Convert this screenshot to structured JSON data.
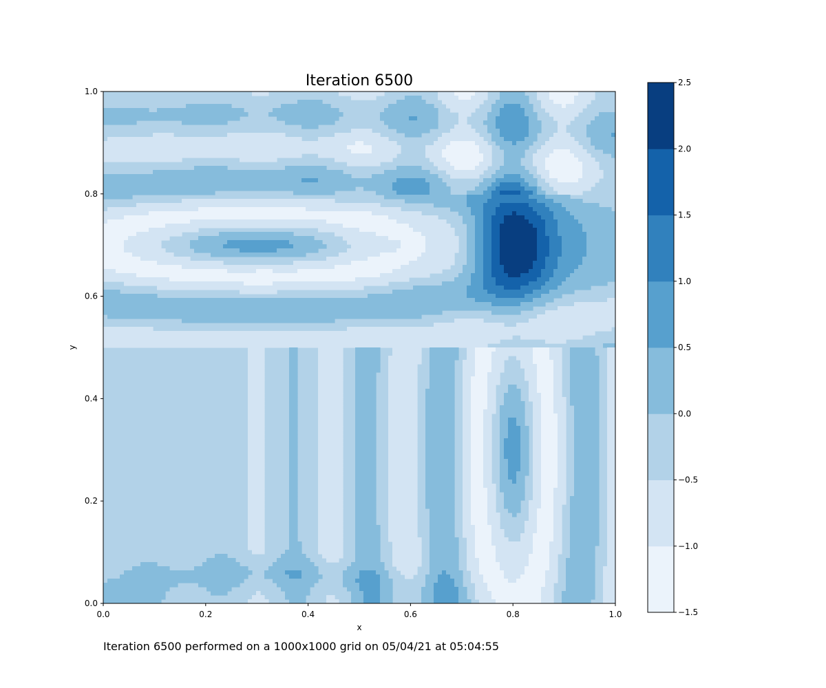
{
  "chart_data": {
    "type": "heatmap",
    "subtype": "filled-contour",
    "title": "Iteration 6500",
    "xlabel": "x",
    "ylabel": "y",
    "xlim": [
      0.0,
      1.0
    ],
    "ylim": [
      0.0,
      1.0
    ],
    "x_ticks": [
      "0.0",
      "0.2",
      "0.4",
      "0.6",
      "0.8",
      "1.0"
    ],
    "y_ticks": [
      "0.0",
      "0.2",
      "0.4",
      "0.6",
      "0.8",
      "1.0"
    ],
    "colorbar": {
      "levels": [
        -1.5,
        -1.0,
        -0.5,
        0.0,
        0.5,
        1.0,
        1.5,
        2.0,
        2.5
      ],
      "tick_labels": [
        "−1.5",
        "−1.0",
        "−0.5",
        "0.0",
        "0.5",
        "1.0",
        "1.5",
        "2.0",
        "2.5"
      ],
      "colors": [
        "#ebf3fb",
        "#d3e4f3",
        "#b2d2e8",
        "#86bcdc",
        "#57a0ce",
        "#3181bd",
        "#1462aa",
        "#083e80"
      ]
    },
    "grid": false,
    "legend": "none",
    "peak": {
      "x": 0.8,
      "y": 0.7,
      "value": 2.3
    }
  },
  "caption": "Iteration 6500 performed on a 1000x1000 grid on 05/04/21 at 05:04:55"
}
